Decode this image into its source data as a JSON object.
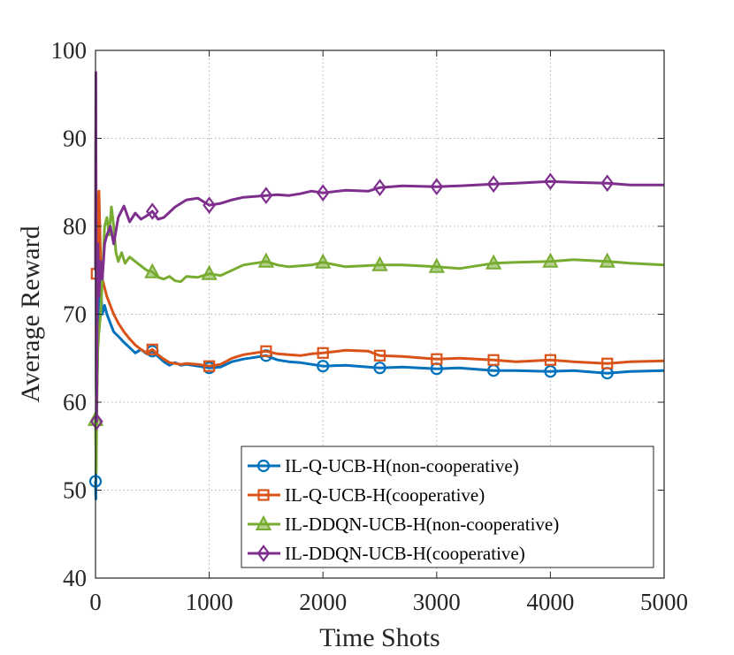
{
  "chart_data": {
    "type": "line",
    "title": "",
    "xlabel": "Time Shots",
    "ylabel": "Average Reward",
    "xlim": [
      0,
      5000
    ],
    "ylim": [
      40,
      100
    ],
    "xticks": [
      0,
      1000,
      2000,
      3000,
      4000,
      5000
    ],
    "yticks": [
      40,
      50,
      60,
      70,
      80,
      90,
      100
    ],
    "grid": true,
    "legend_position": "bottom-right",
    "series": [
      {
        "name": "IL-Q-UCB-H(non-cooperative)",
        "color": "#0072BD",
        "marker": "circle",
        "x": [
          0,
          3,
          6,
          10,
          15,
          20,
          30,
          45,
          60,
          80,
          100,
          130,
          160,
          200,
          250,
          300,
          350,
          400,
          450,
          500,
          550,
          600,
          650,
          700,
          750,
          800,
          900,
          1000,
          1100,
          1200,
          1300,
          1400,
          1500,
          1600,
          1700,
          1800,
          1900,
          2000,
          2200,
          2400,
          2500,
          2700,
          3000,
          3200,
          3500,
          3700,
          4000,
          4200,
          4500,
          4700,
          5000
        ],
        "values": [
          51,
          49,
          57,
          64.8,
          62,
          68,
          72,
          73,
          70,
          71,
          70,
          69,
          68,
          67.5,
          66.8,
          66.2,
          65.6,
          66,
          65.5,
          65.8,
          65.2,
          64.6,
          64.2,
          64.5,
          64.2,
          64.3,
          64.1,
          63.9,
          64.0,
          64.6,
          64.9,
          65.1,
          65.3,
          64.8,
          64.6,
          64.5,
          64.3,
          64.1,
          64.2,
          64.0,
          63.9,
          64.0,
          63.8,
          63.9,
          63.6,
          63.6,
          63.5,
          63.6,
          63.3,
          63.5,
          63.6
        ],
        "marker_x": [
          0,
          500,
          1000,
          1500,
          2000,
          2500,
          3000,
          3500,
          4000,
          4500
        ]
      },
      {
        "name": "IL-Q-UCB-H(cooperative)",
        "color": "#D95319",
        "marker": "square",
        "x": [
          0,
          3,
          6,
          10,
          15,
          20,
          30,
          45,
          60,
          80,
          100,
          130,
          160,
          200,
          250,
          300,
          350,
          400,
          450,
          500,
          550,
          600,
          650,
          700,
          750,
          800,
          900,
          1000,
          1100,
          1200,
          1300,
          1400,
          1500,
          1600,
          1700,
          1800,
          1900,
          2000,
          2200,
          2400,
          2500,
          2700,
          3000,
          3200,
          3500,
          3700,
          4000,
          4200,
          4500,
          4700,
          5000
        ],
        "values": [
          75,
          90.8,
          82,
          74.6,
          72,
          80,
          84,
          76,
          74,
          73,
          72,
          71,
          70,
          69,
          68,
          67.2,
          66.5,
          66,
          65.6,
          66,
          65.4,
          64.9,
          64.5,
          64.4,
          64.3,
          64.4,
          64.3,
          64.1,
          64.3,
          65.0,
          65.4,
          65.6,
          65.8,
          65.5,
          65.4,
          65.3,
          65.5,
          65.6,
          65.9,
          65.8,
          65.3,
          65.2,
          64.9,
          65.0,
          64.8,
          64.6,
          64.8,
          64.6,
          64.4,
          64.6,
          64.7
        ],
        "marker_x": [
          10,
          500,
          1000,
          1500,
          2000,
          2500,
          3000,
          3500,
          4000,
          4500
        ]
      },
      {
        "name": "IL-DDQN-UCB-H(non-cooperative)",
        "color": "#77AC30",
        "marker": "triangle",
        "x": [
          0,
          3,
          6,
          10,
          15,
          20,
          30,
          45,
          60,
          80,
          100,
          120,
          140,
          160,
          180,
          200,
          230,
          260,
          300,
          350,
          400,
          450,
          500,
          550,
          600,
          650,
          700,
          750,
          800,
          900,
          1000,
          1100,
          1200,
          1300,
          1400,
          1500,
          1600,
          1700,
          1800,
          1900,
          2000,
          2200,
          2500,
          2700,
          3000,
          3200,
          3500,
          3700,
          4000,
          4200,
          4500,
          4700,
          5000
        ],
        "values": [
          58,
          54.8,
          52,
          57.8,
          62,
          66,
          68,
          70,
          74,
          80,
          81,
          79,
          82.2,
          80,
          77,
          76,
          77,
          75.8,
          76.5,
          76,
          75.5,
          75,
          74.8,
          74.2,
          74.0,
          74.3,
          73.8,
          73.7,
          74.3,
          74.2,
          74.6,
          74.4,
          75.0,
          75.6,
          75.8,
          76.0,
          75.6,
          75.4,
          75.5,
          75.6,
          75.9,
          75.4,
          75.6,
          75.6,
          75.4,
          75.2,
          75.8,
          75.9,
          76.0,
          76.2,
          76.0,
          75.8,
          75.6
        ],
        "marker_x": [
          0,
          500,
          1000,
          1500,
          2000,
          2500,
          3000,
          3500,
          4000,
          4500
        ]
      },
      {
        "name": "IL-DDQN-UCB-H(cooperative)",
        "color": "#7E2F8E",
        "marker": "diamond",
        "x": [
          0,
          3,
          6,
          10,
          15,
          20,
          30,
          45,
          60,
          80,
          100,
          130,
          160,
          200,
          250,
          300,
          350,
          400,
          450,
          500,
          550,
          600,
          650,
          700,
          800,
          900,
          1000,
          1100,
          1200,
          1300,
          1400,
          1500,
          1600,
          1700,
          1800,
          1900,
          2000,
          2200,
          2400,
          2500,
          2700,
          3000,
          3200,
          3500,
          3700,
          4000,
          4200,
          4500,
          4700,
          5000
        ],
        "values": [
          75,
          97.5,
          62,
          57.8,
          70,
          78,
          72,
          76,
          74,
          78,
          79,
          80,
          78,
          81,
          82.3,
          80.5,
          81.5,
          80.8,
          81.2,
          81.7,
          80.8,
          81.0,
          81.6,
          82.2,
          83.0,
          83.2,
          82.4,
          82.6,
          83.0,
          83.3,
          83.4,
          83.5,
          83.6,
          83.5,
          83.7,
          84.0,
          83.8,
          84.1,
          84.0,
          84.4,
          84.6,
          84.5,
          84.6,
          84.8,
          84.9,
          85.1,
          85.0,
          84.9,
          84.7,
          84.7
        ],
        "marker_x": [
          10,
          500,
          1000,
          1500,
          2000,
          2500,
          3000,
          3500,
          4000,
          4500
        ]
      }
    ]
  }
}
